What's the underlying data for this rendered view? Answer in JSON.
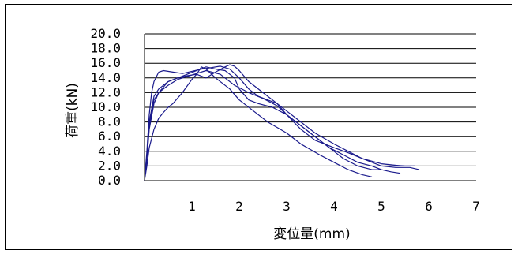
{
  "chart_data": {
    "type": "line",
    "title": "",
    "xlabel": "変位量(mm)",
    "ylabel": "荷重(kN)",
    "xlim": [
      0,
      7
    ],
    "ylim": [
      0,
      20
    ],
    "x_ticks": [
      "1",
      "2",
      "3",
      "4",
      "5",
      "6",
      "7"
    ],
    "y_ticks": [
      "0.0",
      "2.0",
      "4.0",
      "6.0",
      "8.0",
      "10.0",
      "12.0",
      "14.0",
      "16.0",
      "18.0",
      "20.0"
    ],
    "grid": "horizontal",
    "legend": "none",
    "line_color": "#1a1a8c",
    "series": [
      {
        "x": [
          0,
          0.05,
          0.1,
          0.15,
          0.2,
          0.3,
          0.4,
          0.6,
          0.8,
          1.0,
          1.2,
          1.4,
          1.6,
          1.8,
          2.0,
          2.2,
          2.4,
          2.6,
          2.8,
          3.0,
          3.2,
          3.5,
          3.8,
          4.0,
          4.2,
          4.5,
          4.8,
          5.0
        ],
        "y": [
          0,
          4.0,
          9.0,
          12.0,
          13.5,
          14.8,
          15.0,
          14.8,
          14.6,
          14.9,
          15.2,
          15.4,
          15.6,
          15.2,
          14.0,
          12.5,
          11.5,
          11.0,
          10.5,
          9.0,
          8.0,
          6.5,
          5.0,
          4.0,
          3.0,
          2.0,
          1.5,
          1.5
        ]
      },
      {
        "x": [
          0,
          0.05,
          0.1,
          0.2,
          0.3,
          0.5,
          0.7,
          0.9,
          1.1,
          1.3,
          1.5,
          1.7,
          1.9,
          2.0,
          2.2,
          2.4,
          2.7,
          3.0,
          3.3,
          3.6,
          3.9,
          4.2,
          4.5,
          4.8,
          5.0,
          5.2,
          5.4
        ],
        "y": [
          0,
          3.0,
          7.0,
          10.5,
          12.0,
          13.5,
          14.0,
          14.5,
          15.0,
          15.5,
          15.2,
          15.0,
          14.0,
          12.5,
          11.0,
          10.5,
          10.0,
          9.0,
          7.5,
          6.0,
          4.5,
          3.5,
          2.5,
          2.0,
          1.5,
          1.2,
          1.0
        ]
      },
      {
        "x": [
          0,
          0.05,
          0.1,
          0.2,
          0.3,
          0.5,
          0.7,
          0.9,
          1.1,
          1.3,
          1.5,
          1.7,
          1.8,
          1.9,
          2.0,
          2.2,
          2.5,
          2.8,
          3.0,
          3.3,
          3.6,
          4.0,
          4.3,
          4.6,
          5.0,
          5.3,
          5.6,
          5.8
        ],
        "y": [
          0,
          3.5,
          8.0,
          11.5,
          12.5,
          13.5,
          14.0,
          14.3,
          14.5,
          14.0,
          14.8,
          15.5,
          15.8,
          15.6,
          15.0,
          13.5,
          12.0,
          10.5,
          9.5,
          8.0,
          6.5,
          5.0,
          4.0,
          3.0,
          2.0,
          1.8,
          1.8,
          1.5
        ]
      },
      {
        "x": [
          0,
          0.05,
          0.1,
          0.2,
          0.3,
          0.5,
          0.7,
          0.9,
          1.1,
          1.3,
          1.6,
          1.9,
          2.2,
          2.5,
          2.8,
          3.0,
          3.3,
          3.6,
          4.0,
          4.3,
          4.6,
          5.0,
          5.3,
          5.5,
          5.7
        ],
        "y": [
          0,
          3.0,
          7.5,
          11.0,
          12.0,
          13.0,
          13.8,
          14.2,
          14.6,
          15.0,
          14.5,
          13.0,
          12.0,
          11.2,
          10.2,
          9.0,
          7.0,
          5.5,
          4.5,
          3.8,
          3.0,
          2.3,
          2.1,
          2.0,
          2.0
        ]
      },
      {
        "x": [
          0,
          0.05,
          0.1,
          0.2,
          0.3,
          0.4,
          0.5,
          0.6,
          0.8,
          1.0,
          1.1,
          1.2,
          1.3,
          1.5,
          1.8,
          2.0,
          2.3,
          2.6,
          3.0,
          3.3,
          3.7,
          4.0,
          4.3,
          4.6,
          4.8
        ],
        "y": [
          0,
          2.0,
          4.5,
          7.0,
          8.5,
          9.3,
          10.0,
          10.5,
          12.0,
          13.8,
          14.5,
          15.5,
          15.2,
          14.0,
          12.5,
          11.0,
          9.5,
          8.0,
          6.5,
          5.0,
          3.5,
          2.5,
          1.5,
          0.8,
          0.5
        ]
      }
    ]
  }
}
